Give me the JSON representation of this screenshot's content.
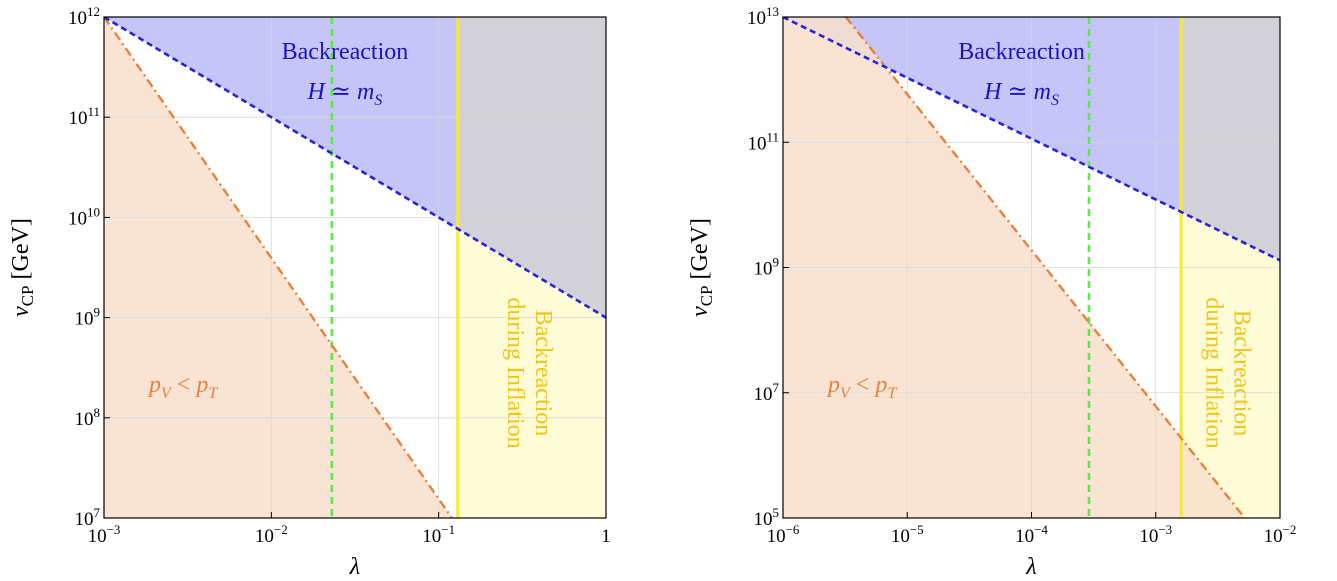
{
  "chart_data": [
    {
      "type": "area",
      "xlabel": "λ",
      "ylabel_main": "v",
      "ylabel_sub": "CP",
      "ylabel_unit": "[GeV]",
      "xscale": "log",
      "yscale": "log",
      "xlim": [
        0.001,
        1
      ],
      "ylim": [
        10000000,
        1000000000000
      ],
      "grid": true,
      "x_ticks": [
        {
          "value": 0.001,
          "base": "10",
          "exp": "−3"
        },
        {
          "value": 0.01,
          "base": "10",
          "exp": "−2"
        },
        {
          "value": 0.1,
          "base": "10",
          "exp": "−1"
        },
        {
          "value": 1,
          "base": "1",
          "exp": ""
        }
      ],
      "y_ticks": [
        {
          "value": 10000000,
          "base": "10",
          "exp": "7"
        },
        {
          "value": 100000000,
          "base": "10",
          "exp": "8"
        },
        {
          "value": 1000000000,
          "base": "10",
          "exp": "9"
        },
        {
          "value": 10000000000,
          "base": "10",
          "exp": "10"
        },
        {
          "value": 100000000000,
          "base": "10",
          "exp": "11"
        },
        {
          "value": 1000000000000,
          "base": "10",
          "exp": "12"
        }
      ],
      "lines": {
        "backreaction_blue": {
          "x": [
            0.001,
            1
          ],
          "y": [
            1000000000000,
            1000000000
          ],
          "color": "#2a22d6",
          "style": "dashed"
        },
        "orange_dashdot": {
          "x": [
            0.001,
            0.12
          ],
          "y": [
            1000000000000,
            10000000
          ],
          "color": "#e8823a",
          "style": "dashdot"
        },
        "yellow_vertical": {
          "x": 0.13,
          "color": "#f5ea37",
          "style": "solid"
        },
        "green_vertical": {
          "x": 0.023,
          "color": "#5ee94a",
          "style": "dashed"
        }
      },
      "regions": {
        "blue_fill": "#c5c5f7",
        "orange_fill": "#f8dfcc",
        "yellow_fill": "#fdfcd7",
        "gray_fill": "#d2d1d8"
      },
      "labels": {
        "backreaction_title": "Backreaction",
        "backreaction_eq_H": "H",
        "backreaction_eq_sym": " ≃ ",
        "backreaction_eq_m": "m",
        "backreaction_eq_sub": "S",
        "pv_p1": "p",
        "pv_s1": "V",
        "pv_mid": " < ",
        "pv_p2": "p",
        "pv_s2": "T",
        "inflation_line1": "Backreaction",
        "inflation_line2": "during Inflation"
      },
      "label_colors": {
        "blue_text": "#1a14c8",
        "orange_text": "#e8823a",
        "yellow_text": "#f0c418"
      }
    },
    {
      "type": "area",
      "xlabel": "λ",
      "ylabel_main": "v",
      "ylabel_sub": "CP",
      "ylabel_unit": "[GeV]",
      "xscale": "log",
      "yscale": "log",
      "xlim": [
        1e-06,
        0.01
      ],
      "ylim": [
        100000,
        10000000000000
      ],
      "grid": true,
      "x_ticks": [
        {
          "value": 1e-06,
          "base": "10",
          "exp": "−6"
        },
        {
          "value": 1e-05,
          "base": "10",
          "exp": "−5"
        },
        {
          "value": 0.0001,
          "base": "10",
          "exp": "−4"
        },
        {
          "value": 0.001,
          "base": "10",
          "exp": "−3"
        },
        {
          "value": 0.01,
          "base": "10",
          "exp": "−2"
        }
      ],
      "y_ticks": [
        {
          "value": 100000,
          "base": "10",
          "exp": "5"
        },
        {
          "value": 10000000,
          "base": "10",
          "exp": "7"
        },
        {
          "value": 1000000000,
          "base": "10",
          "exp": "9"
        },
        {
          "value": 100000000000,
          "base": "10",
          "exp": "11"
        },
        {
          "value": 10000000000000,
          "base": "10",
          "exp": "13"
        }
      ],
      "lines": {
        "backreaction_blue": {
          "x": [
            1e-06,
            0.01
          ],
          "y": [
            10000000000000,
            1300000000
          ],
          "color": "#2a22d6",
          "style": "dashed"
        },
        "orange_dashdot": {
          "x": [
            3.2e-06,
            0.0052
          ],
          "y": [
            10000000000000,
            100000
          ],
          "color": "#e8823a",
          "style": "dashdot"
        },
        "yellow_vertical": {
          "x": 0.0016,
          "color": "#f5ea37",
          "style": "solid"
        },
        "green_vertical": {
          "x": 0.00029,
          "color": "#5ee94a",
          "style": "dashed"
        }
      },
      "regions": {
        "blue_fill": "#c5c5f7",
        "orange_fill": "#f8dfcc",
        "yellow_fill": "#fdfcd7",
        "gray_fill": "#d2d1d8"
      },
      "labels": {
        "backreaction_title": "Backreaction",
        "backreaction_eq_H": "H",
        "backreaction_eq_sym": " ≃ ",
        "backreaction_eq_m": "m",
        "backreaction_eq_sub": "S",
        "pv_p1": "p",
        "pv_s1": "V",
        "pv_mid": " < ",
        "pv_p2": "p",
        "pv_s2": "T",
        "inflation_line1": "Backreaction",
        "inflation_line2": "during Inflation"
      },
      "label_colors": {
        "blue_text": "#1a14c8",
        "orange_text": "#e8823a",
        "yellow_text": "#f0c418"
      }
    }
  ]
}
